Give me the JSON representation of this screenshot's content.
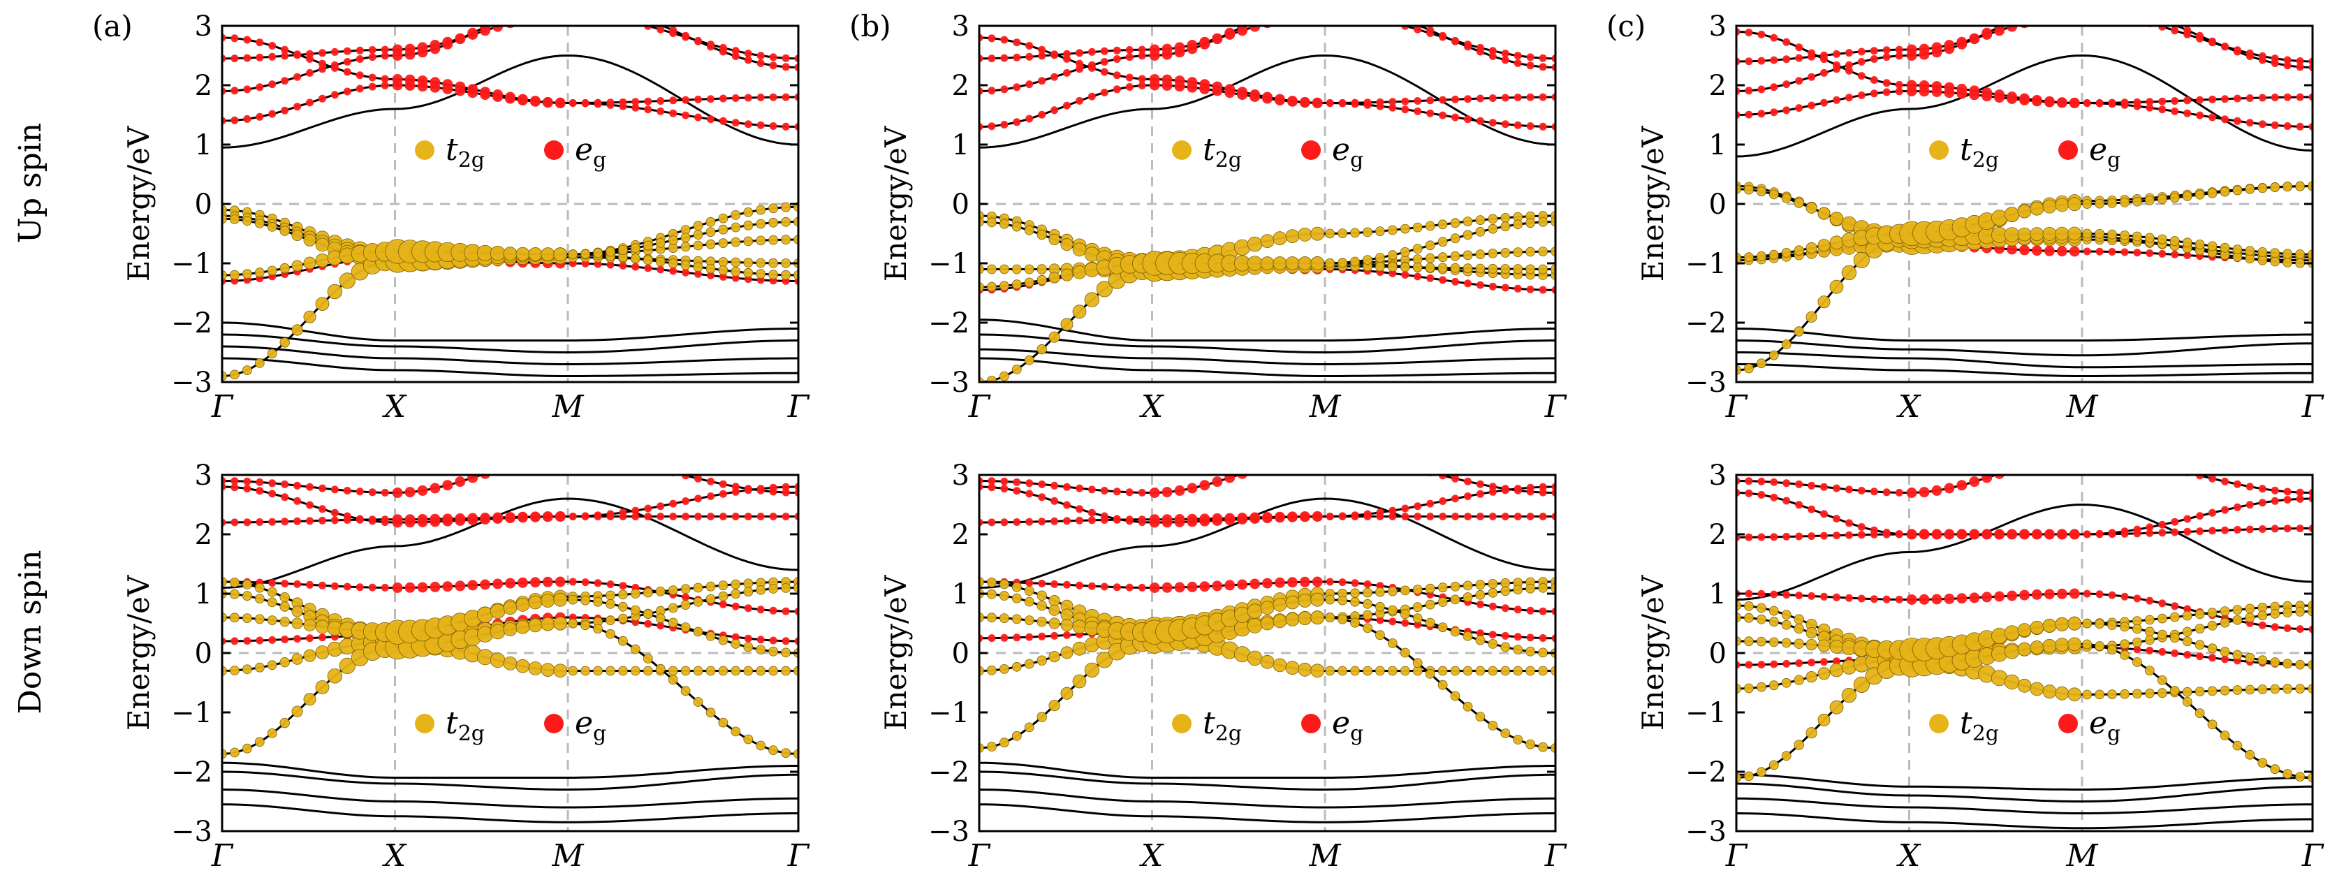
{
  "chart_data": {
    "type": "line",
    "ylabel": "Energy/eV",
    "ylim": [
      -3,
      3
    ],
    "yticks": [
      "3",
      "2",
      "1",
      "0",
      "−1",
      "−2",
      "−3"
    ],
    "kpoints": [
      "Γ",
      "X",
      "M",
      "Γ"
    ],
    "legend": {
      "placement": "inside-middle",
      "t2g": {
        "main": "t",
        "sub": "2g"
      },
      "eg": {
        "main": "e",
        "sub": "g"
      }
    },
    "colors": {
      "t2g": "#e6b419",
      "eg": "#ff1a1a",
      "bands": "#000000",
      "guides": "#bbbbbb"
    },
    "rows": [
      {
        "label": "Up spin"
      },
      {
        "label": "Down spin"
      }
    ],
    "columns": [
      {
        "label": "(a)"
      },
      {
        "label": "(b)"
      },
      {
        "label": "(c)"
      }
    ],
    "panels": [
      {
        "id": "a-up",
        "t2g": [
          [
            -0.1,
            -0.85,
            -0.85,
            -0.05
          ],
          [
            -0.2,
            -0.9,
            -0.85,
            -0.6
          ],
          [
            -0.25,
            -0.95,
            -0.9,
            -1.0
          ],
          [
            -2.9,
            -0.95,
            -0.85,
            -1.2
          ],
          [
            -1.2,
            -0.8,
            -0.85,
            -0.3
          ]
        ],
        "eg": [
          [
            1.4,
            2.0,
            1.7,
            1.8
          ],
          [
            2.8,
            2.1,
            1.7,
            1.3
          ],
          [
            -1.3,
            -0.9,
            -1.0,
            -1.3
          ],
          [
            2.45,
            2.6,
            3.2,
            2.45
          ],
          [
            1.9,
            2.5,
            3.4,
            2.3
          ]
        ],
        "other": [
          [
            0.95,
            1.6,
            2.5,
            1.0
          ],
          [
            -2.0,
            -2.3,
            -2.3,
            -2.1
          ],
          [
            -2.2,
            -2.4,
            -2.5,
            -2.3
          ],
          [
            -2.4,
            -2.6,
            -2.7,
            -2.6
          ],
          [
            -2.6,
            -2.8,
            -2.9,
            -2.85
          ]
        ]
      },
      {
        "id": "b-up",
        "t2g": [
          [
            -0.2,
            -1.0,
            -0.5,
            -0.2
          ],
          [
            -0.3,
            -1.05,
            -1.0,
            -0.8
          ],
          [
            -1.1,
            -1.1,
            -1.0,
            -1.2
          ],
          [
            -3.0,
            -1.1,
            -1.05,
            -1.1
          ],
          [
            -1.4,
            -1.0,
            -1.0,
            -0.3
          ]
        ],
        "eg": [
          [
            1.3,
            2.0,
            1.7,
            1.8
          ],
          [
            2.8,
            2.1,
            1.7,
            1.3
          ],
          [
            -1.45,
            -1.0,
            -1.1,
            -1.45
          ],
          [
            2.45,
            2.6,
            3.2,
            2.45
          ],
          [
            1.9,
            2.5,
            3.4,
            2.3
          ]
        ],
        "other": [
          [
            0.95,
            1.6,
            2.5,
            1.0
          ],
          [
            -1.95,
            -2.3,
            -2.3,
            -2.1
          ],
          [
            -2.2,
            -2.4,
            -2.5,
            -2.3
          ],
          [
            -2.45,
            -2.6,
            -2.7,
            -2.6
          ],
          [
            -2.6,
            -2.8,
            -2.9,
            -2.85
          ]
        ]
      },
      {
        "id": "c-up",
        "t2g": [
          [
            0.3,
            -0.6,
            0.05,
            0.3
          ],
          [
            0.25,
            -0.55,
            -0.6,
            -0.9
          ],
          [
            -0.95,
            -0.65,
            -0.55,
            -1.0
          ],
          [
            -2.8,
            -0.55,
            -0.5,
            -0.85
          ],
          [
            -0.9,
            -0.5,
            0.0,
            0.3
          ]
        ],
        "eg": [
          [
            1.5,
            1.9,
            1.7,
            1.8
          ],
          [
            2.9,
            2.0,
            1.7,
            1.3
          ],
          [
            -0.9,
            -0.7,
            -0.8,
            -0.95
          ],
          [
            2.4,
            2.6,
            3.2,
            2.4
          ],
          [
            1.9,
            2.5,
            3.4,
            2.3
          ]
        ],
        "other": [
          [
            0.8,
            1.6,
            2.5,
            0.9
          ],
          [
            -2.1,
            -2.3,
            -2.3,
            -2.2
          ],
          [
            -2.3,
            -2.45,
            -2.55,
            -2.35
          ],
          [
            -2.5,
            -2.6,
            -2.75,
            -2.7
          ],
          [
            -2.7,
            -2.8,
            -2.9,
            -2.85
          ]
        ]
      },
      {
        "id": "a-down",
        "t2g": [
          [
            1.2,
            0.3,
            0.95,
            1.2
          ],
          [
            1.0,
            0.25,
            0.5,
            1.1
          ],
          [
            -0.3,
            0.2,
            -0.3,
            -0.3
          ],
          [
            -1.7,
            0.1,
            0.5,
            -1.7
          ],
          [
            0.6,
            0.35,
            0.9,
            0.0
          ]
        ],
        "eg": [
          [
            2.2,
            2.25,
            2.3,
            2.3
          ],
          [
            2.8,
            2.2,
            2.3,
            2.8
          ],
          [
            0.2,
            0.3,
            0.6,
            0.2
          ],
          [
            2.9,
            2.7,
            3.3,
            2.7
          ],
          [
            1.2,
            1.1,
            1.2,
            0.7
          ]
        ],
        "other": [
          [
            1.1,
            1.8,
            2.6,
            1.4
          ],
          [
            -1.85,
            -2.1,
            -2.1,
            -1.9
          ],
          [
            -2.0,
            -2.2,
            -2.3,
            -2.05
          ],
          [
            -2.3,
            -2.5,
            -2.6,
            -2.45
          ],
          [
            -2.55,
            -2.75,
            -2.85,
            -2.7
          ]
        ]
      },
      {
        "id": "b-down",
        "t2g": [
          [
            1.2,
            0.4,
            1.0,
            1.2
          ],
          [
            1.0,
            0.3,
            0.6,
            1.1
          ],
          [
            -0.3,
            0.3,
            -0.3,
            -0.3
          ],
          [
            -1.6,
            0.2,
            0.6,
            -1.6
          ],
          [
            0.6,
            0.35,
            0.9,
            0.0
          ]
        ],
        "eg": [
          [
            2.2,
            2.25,
            2.3,
            2.3
          ],
          [
            2.8,
            2.2,
            2.3,
            2.8
          ],
          [
            0.25,
            0.35,
            0.6,
            0.25
          ],
          [
            2.9,
            2.7,
            3.3,
            2.7
          ],
          [
            1.2,
            1.1,
            1.2,
            0.7
          ]
        ],
        "other": [
          [
            1.1,
            1.8,
            2.6,
            1.4
          ],
          [
            -1.85,
            -2.1,
            -2.1,
            -1.9
          ],
          [
            -2.0,
            -2.2,
            -2.3,
            -2.05
          ],
          [
            -2.3,
            -2.5,
            -2.6,
            -2.45
          ],
          [
            -2.55,
            -2.75,
            -2.85,
            -2.7
          ]
        ]
      },
      {
        "id": "c-down",
        "t2g": [
          [
            0.8,
            0.0,
            0.5,
            0.8
          ],
          [
            0.6,
            -0.05,
            0.1,
            0.7
          ],
          [
            -0.6,
            -0.1,
            -0.7,
            -0.6
          ],
          [
            -2.1,
            -0.2,
            0.15,
            -2.1
          ],
          [
            0.2,
            0.05,
            0.5,
            -0.2
          ]
        ],
        "eg": [
          [
            1.95,
            2.0,
            2.0,
            2.1
          ],
          [
            2.7,
            2.0,
            2.0,
            2.6
          ],
          [
            -0.2,
            -0.1,
            0.1,
            -0.2
          ],
          [
            2.9,
            2.7,
            3.3,
            2.7
          ],
          [
            1.0,
            0.9,
            1.0,
            0.4
          ]
        ],
        "other": [
          [
            0.9,
            1.7,
            2.5,
            1.2
          ],
          [
            -2.05,
            -2.25,
            -2.3,
            -2.1
          ],
          [
            -2.2,
            -2.4,
            -2.5,
            -2.25
          ],
          [
            -2.45,
            -2.6,
            -2.7,
            -2.55
          ],
          [
            -2.7,
            -2.85,
            -2.95,
            -2.8
          ]
        ]
      }
    ]
  }
}
